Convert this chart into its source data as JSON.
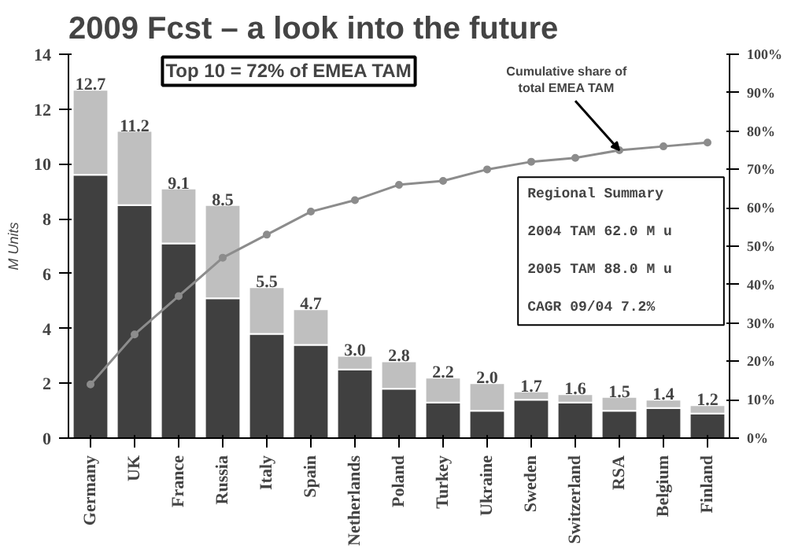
{
  "chart_data": {
    "type": "bar",
    "title": "2009 Fcst – a look into the future",
    "ylabel": "M Units",
    "categories": [
      "Germany",
      "UK",
      "France",
      "Russia",
      "Italy",
      "Spain",
      "Netherlands",
      "Poland",
      "Turkey",
      "Ukraine",
      "Sweden",
      "Switzerland",
      "RSA",
      "Belgium",
      "Finland"
    ],
    "stacked": true,
    "series": [
      {
        "color": "#404040",
        "values": [
          9.6,
          8.5,
          7.1,
          5.1,
          3.8,
          3.4,
          2.5,
          1.8,
          1.3,
          1.0,
          1.4,
          1.3,
          1.0,
          1.1,
          0.9
        ]
      },
      {
        "color": "#bfbfbf",
        "values": [
          3.1,
          2.7,
          2.0,
          3.4,
          1.7,
          1.3,
          0.5,
          1.0,
          0.9,
          1.0,
          0.3,
          0.3,
          0.5,
          0.3,
          0.3
        ]
      },
      {
        "type": "line",
        "axis": "y2",
        "color": "#8c8c8c",
        "marker": "circle",
        "values": [
          14,
          27,
          37,
          47,
          53,
          59,
          62,
          66,
          67,
          70,
          72,
          73,
          75,
          76,
          77
        ]
      }
    ],
    "totals": [
      "12.7",
      "11.2",
      "9.1",
      "8.5",
      "5.5",
      "4.7",
      "3.0",
      "2.8",
      "2.2",
      "2.0",
      "1.7",
      "1.6",
      "1.5",
      "1.4",
      "1.2"
    ],
    "ylim": [
      0,
      14
    ],
    "yticks": [
      0,
      2,
      4,
      6,
      8,
      10,
      12,
      14
    ],
    "y2lim": [
      0,
      100
    ],
    "y2ticks": [
      {
        "value": 0,
        "label": "0%"
      },
      {
        "value": 10,
        "label": "10%"
      },
      {
        "value": 20,
        "label": "20%"
      },
      {
        "value": 30,
        "label": "30%"
      },
      {
        "value": 40,
        "label": "40%"
      },
      {
        "value": 50,
        "label": "50%"
      },
      {
        "value": 60,
        "label": "60%"
      },
      {
        "value": 70,
        "label": "70%"
      },
      {
        "value": 80,
        "label": "80%"
      },
      {
        "value": 90,
        "label": "90%"
      },
      {
        "value": 100,
        "label": "100%"
      }
    ],
    "annotations": [
      "Top 10 = 72% of EMEA TAM",
      {
        "text": "Cumulative share of\ntotal EMEA TAM",
        "x": "RSA",
        "y": 10.5
      },
      "Regional Summary",
      "2004 TAM      62.0 M u",
      "2005 TAM      88.0 M u",
      "CAGR 09/04        7.2%"
    ],
    "grid": false
  }
}
